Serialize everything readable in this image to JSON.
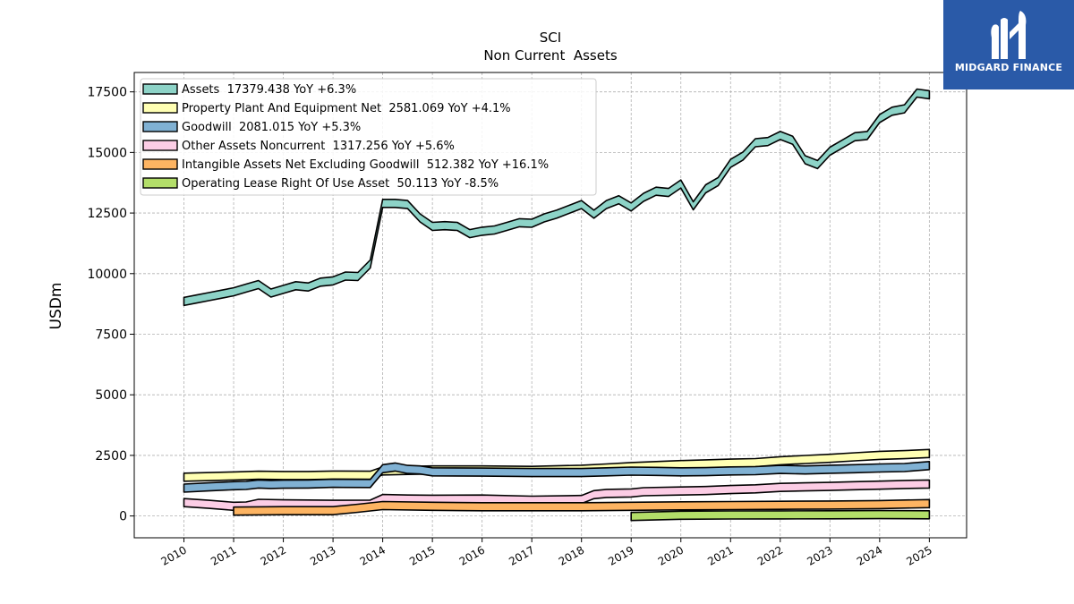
{
  "chart_data": {
    "type": "area",
    "title": "SCI",
    "subtitle": "Non Current  Assets",
    "ylabel": "USDm",
    "xlabel": "",
    "ylim": [
      -900,
      18300
    ],
    "xlim": [
      2009.0,
      2025.75
    ],
    "yticks": [
      0,
      2500,
      5000,
      7500,
      10000,
      12500,
      15000,
      17500
    ],
    "ytick_labels": [
      "0",
      "2500",
      "5000",
      "7500",
      "10000",
      "12500",
      "15000",
      "17500"
    ],
    "xticks": [
      2010,
      2011,
      2012,
      2013,
      2014,
      2015,
      2016,
      2017,
      2018,
      2019,
      2020,
      2021,
      2022,
      2023,
      2024,
      2025
    ],
    "xtick_labels": [
      "2010",
      "2011",
      "2012",
      "2013",
      "2014",
      "2015",
      "2016",
      "2017",
      "2018",
      "2019",
      "2020",
      "2021",
      "2022",
      "2023",
      "2024",
      "2025"
    ],
    "grid": true,
    "legend_position": "top-left",
    "series": [
      {
        "name": "Assets",
        "legend": "Assets  17379.438 YoY +6.3%",
        "color": "#8dd3c7",
        "x": [
          2010.0,
          2010.25,
          2010.5,
          2010.75,
          2011.0,
          2011.25,
          2011.5,
          2011.75,
          2012.0,
          2012.25,
          2012.5,
          2012.75,
          2013.0,
          2013.25,
          2013.5,
          2013.75,
          2014.0,
          2014.25,
          2014.5,
          2014.75,
          2015.0,
          2015.25,
          2015.5,
          2015.75,
          2016.0,
          2016.25,
          2016.5,
          2016.75,
          2017.0,
          2017.25,
          2017.5,
          2017.75,
          2018.0,
          2018.25,
          2018.5,
          2018.75,
          2019.0,
          2019.25,
          2019.5,
          2019.75,
          2020.0,
          2020.25,
          2020.5,
          2020.75,
          2021.0,
          2021.25,
          2021.5,
          2021.75,
          2022.0,
          2022.25,
          2022.5,
          2022.75,
          2023.0,
          2023.25,
          2023.5,
          2023.75,
          2024.0,
          2024.25,
          2024.5,
          2024.75,
          2025.0
        ],
        "values": [
          8850,
          8950,
          9050,
          9150,
          9250,
          9400,
          9550,
          9200,
          9350,
          9500,
          9450,
          9650,
          9700,
          9900,
          9880,
          10400,
          12900,
          12900,
          12850,
          12300,
          11950,
          11980,
          11950,
          11650,
          11750,
          11800,
          11950,
          12100,
          12080,
          12300,
          12450,
          12650,
          12850,
          12450,
          12850,
          13050,
          12750,
          13150,
          13400,
          13350,
          13700,
          12800,
          13500,
          13800,
          14550,
          14850,
          15400,
          15450,
          15700,
          15500,
          14700,
          14500,
          15050,
          15350,
          15650,
          15700,
          16400,
          16700,
          16800,
          17450,
          17380
        ]
      },
      {
        "name": "Property Plant And Equipment Net",
        "legend": "Property Plant And Equipment Net  2581.069 YoY +4.1%",
        "color": "#ffffb3",
        "x": [
          2010.0,
          2011.0,
          2011.5,
          2012.0,
          2012.5,
          2013.0,
          2013.75,
          2014.0,
          2014.5,
          2015.0,
          2016.0,
          2017.0,
          2018.0,
          2018.5,
          2019.0,
          2019.5,
          2020.0,
          2020.5,
          2021.0,
          2021.5,
          2022.0,
          2022.5,
          2023.0,
          2023.5,
          2024.0,
          2024.5,
          2025.0
        ],
        "values": [
          1600,
          1650,
          1680,
          1670,
          1670,
          1690,
          1680,
          1860,
          1880,
          1900,
          1900,
          1880,
          1930,
          1980,
          2040,
          2080,
          2120,
          2150,
          2180,
          2200,
          2280,
          2330,
          2380,
          2440,
          2500,
          2530,
          2580
        ]
      },
      {
        "name": "Goodwill",
        "legend": "Goodwill  2081.015 YoY +5.3%",
        "color": "#80b1d3",
        "x": [
          2010.0,
          2010.5,
          2011.0,
          2011.25,
          2011.5,
          2011.75,
          2012.0,
          2012.5,
          2013.0,
          2013.75,
          2014.0,
          2014.25,
          2014.5,
          2014.75,
          2015.0,
          2016.0,
          2017.0,
          2018.0,
          2018.5,
          2019.0,
          2019.5,
          2020.0,
          2020.5,
          2021.0,
          2021.5,
          2022.0,
          2022.5,
          2023.0,
          2023.5,
          2024.0,
          2024.5,
          2025.0
        ],
        "values": [
          1150,
          1200,
          1250,
          1260,
          1320,
          1300,
          1310,
          1320,
          1350,
          1340,
          1950,
          2020,
          1920,
          1900,
          1820,
          1810,
          1790,
          1790,
          1820,
          1850,
          1840,
          1820,
          1830,
          1860,
          1870,
          1920,
          1900,
          1930,
          1950,
          1980,
          2000,
          2080
        ]
      },
      {
        "name": "Other Assets Noncurrent",
        "legend": "Other Assets Noncurrent  1317.256 YoY +5.6%",
        "color": "#fccde5",
        "x": [
          2010.0,
          2010.5,
          2011.0,
          2011.25,
          2011.5,
          2012.0,
          2013.0,
          2013.75,
          2014.0,
          2014.5,
          2015.0,
          2016.0,
          2017.0,
          2018.0,
          2018.25,
          2018.5,
          2019.0,
          2019.25,
          2020.0,
          2020.5,
          2021.0,
          2021.5,
          2022.0,
          2022.5,
          2023.0,
          2023.5,
          2024.0,
          2024.5,
          2025.0
        ],
        "values": [
          550,
          480,
          400,
          410,
          520,
          500,
          480,
          490,
          720,
          700,
          690,
          700,
          650,
          680,
          880,
          930,
          950,
          1000,
          1030,
          1050,
          1090,
          1120,
          1180,
          1200,
          1220,
          1250,
          1270,
          1300,
          1320
        ]
      },
      {
        "name": "Intangible Assets Net Excluding Goodwill",
        "legend": "Intangible Assets Net Excluding Goodwill  512.382 YoY +16.1%",
        "color": "#fdb462",
        "x": [
          2011.0,
          2012.0,
          2013.0,
          2013.5,
          2014.0,
          2015.0,
          2016.0,
          2017.0,
          2018.0,
          2019.0,
          2020.0,
          2021.0,
          2022.0,
          2023.0,
          2024.0,
          2025.0
        ],
        "values": [
          200,
          220,
          220,
          320,
          430,
          400,
          380,
          380,
          380,
          400,
          420,
          430,
          440,
          450,
          470,
          510
        ]
      },
      {
        "name": "Operating Lease Right Of Use Asset",
        "legend": "Operating Lease Right Of Use Asset  50.113 YoY -8.5%",
        "color": "#b3de69",
        "x": [
          2019.0,
          2020.0,
          2021.0,
          2022.0,
          2023.0,
          2024.0,
          2025.0
        ],
        "values": [
          -20,
          30,
          40,
          45,
          50,
          55,
          50
        ]
      }
    ]
  },
  "logo": {
    "text": "MIDGARD FINANCE",
    "icon": "midgard-finance-logo-icon",
    "bg_color": "#2a5aa8"
  }
}
